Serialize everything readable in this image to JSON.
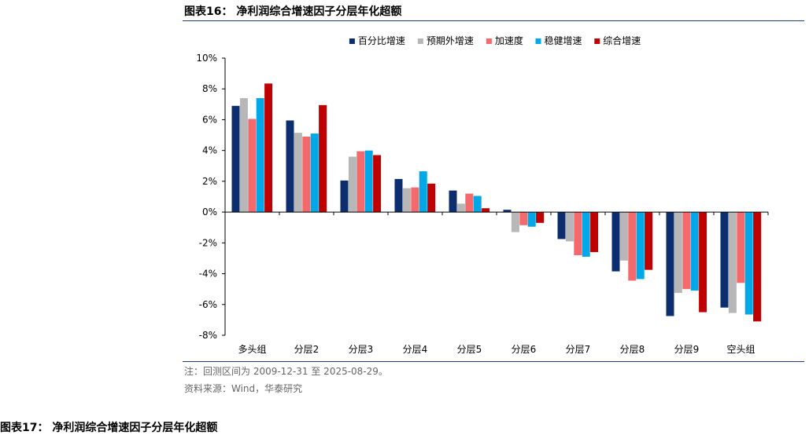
{
  "figure_title": "图表16： 净利润综合增速因子分层年化超额",
  "note": "注：回测区间为 2009-12-31 至 2025-08-29。",
  "source": "资料来源：Wind，华泰研究",
  "next_figure_title": "图表17： 净利润综合增速因子分层年化超额",
  "chart_data": {
    "type": "bar",
    "title": "",
    "xlabel": "",
    "ylabel": "",
    "ylim": [
      -8,
      10
    ],
    "yticks": [
      -8,
      -6,
      -4,
      -2,
      0,
      2,
      4,
      6,
      8,
      10
    ],
    "ytick_labels": [
      "-8%",
      "-6%",
      "-4%",
      "-2%",
      "0%",
      "2%",
      "4%",
      "6%",
      "8%",
      "10%"
    ],
    "legend_position": "top",
    "categories": [
      "多头组",
      "分层2",
      "分层3",
      "分层4",
      "分层5",
      "分层6",
      "分层7",
      "分层8",
      "分层9",
      "空头组"
    ],
    "series": [
      {
        "name": "百分比增速",
        "color": "#0c2e6e",
        "values": [
          6.9,
          5.95,
          2.05,
          2.15,
          1.4,
          0.15,
          -1.75,
          -3.85,
          -6.75,
          -6.2
        ]
      },
      {
        "name": "预期外增速",
        "color": "#b7b7b7",
        "values": [
          7.4,
          5.15,
          3.6,
          1.55,
          0.55,
          -1.3,
          -1.9,
          -3.15,
          -5.25,
          -6.55
        ]
      },
      {
        "name": "加速度",
        "color": "#f4696b",
        "values": [
          6.05,
          4.9,
          3.95,
          1.6,
          1.2,
          -0.85,
          -2.8,
          -4.45,
          -5.0,
          -4.6
        ]
      },
      {
        "name": "稳健增速",
        "color": "#00a8e8",
        "values": [
          7.4,
          5.1,
          4.0,
          2.65,
          1.05,
          -0.95,
          -2.9,
          -4.35,
          -5.1,
          -6.65
        ]
      },
      {
        "name": "综合增速",
        "color": "#c00000",
        "values": [
          8.35,
          6.95,
          3.7,
          1.85,
          0.25,
          -0.7,
          -2.6,
          -3.75,
          -6.5,
          -7.1
        ]
      }
    ]
  }
}
